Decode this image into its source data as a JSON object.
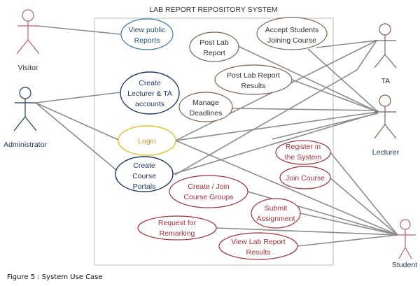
{
  "title": "LAB REPORT REPOSITORY SYSTEM",
  "caption": "Figure 5 : System Use Case",
  "colors": {
    "visitor": "#b5646e",
    "admin": "#1f3864",
    "brown": "#7d6350",
    "login": "#e8c02c",
    "login_text": "#c8902a",
    "student": "#a0303a",
    "public": "#3a7ca5",
    "line": "#8c8c8c"
  },
  "actors": {
    "visitor": "Visitor",
    "administrator": "Administrator",
    "ta": "TA",
    "lecturer": "Lecturer",
    "student": "Student"
  },
  "use_cases": {
    "view_public": [
      "View public",
      "Reports"
    ],
    "post_lab": [
      "Post Lab",
      "Report"
    ],
    "accept": [
      "Accept Students",
      "Joining Course"
    ],
    "post_results": [
      "Post Lab Report",
      "Results"
    ],
    "create_accounts": [
      "Create",
      "Lecturer & TA",
      "accounts"
    ],
    "deadlines": [
      "Manage",
      "Deadlines"
    ],
    "login": [
      "Login"
    ],
    "portals": [
      "Create",
      "Course",
      "Portals"
    ],
    "register": [
      "Register in",
      "the System"
    ],
    "join": [
      "Join Course"
    ],
    "groups": [
      "Create / Join",
      "Course Groups"
    ],
    "submit": [
      "Submit",
      "Assignment"
    ],
    "remark": [
      "Request for",
      "Remarking"
    ],
    "view_results": [
      "View Lab Report",
      "Results"
    ]
  }
}
